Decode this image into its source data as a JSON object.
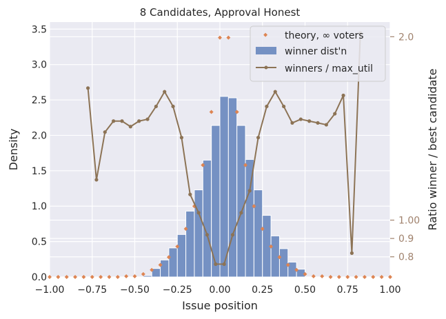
{
  "chart_data": {
    "type": "bar",
    "title": "8 Candidates, Approval Honest",
    "xlabel": "Issue position",
    "ylabel": "Density",
    "ylabel_right": "Ratio winner / best candidate",
    "xlim": [
      -1.0,
      1.0
    ],
    "ylim": [
      0,
      3.6
    ],
    "y2lim": [
      0.69,
      2.08
    ],
    "xticks": [
      "−1.00",
      "−0.75",
      "−0.50",
      "−0.25",
      "0.00",
      "0.25",
      "0.50",
      "0.75",
      "1.00"
    ],
    "yticks": [
      "0.0",
      "0.5",
      "1.0",
      "1.5",
      "2.0",
      "2.5",
      "3.0",
      "3.5"
    ],
    "y2ticks": [
      "0.8",
      "0.9",
      "1.00",
      "2.0"
    ],
    "grid": true,
    "legend_position": "top-right",
    "colors": {
      "background": "#eaeaf2",
      "bars": "#7591c3",
      "theory": "#dd8452",
      "ratio": "#8c7355",
      "right_axis_text": "#a0826d"
    },
    "series": [
      {
        "name": "winner dist'n",
        "kind": "bar",
        "bin_width": 0.05,
        "x": [
          -0.425,
          -0.375,
          -0.325,
          -0.275,
          -0.225,
          -0.175,
          -0.125,
          -0.075,
          -0.025,
          0.025,
          0.075,
          0.125,
          0.175,
          0.225,
          0.275,
          0.325,
          0.375,
          0.425,
          0.475
        ],
        "values": [
          0.02,
          0.12,
          0.24,
          0.41,
          0.6,
          0.93,
          1.23,
          1.65,
          2.14,
          2.55,
          2.53,
          2.14,
          1.66,
          1.23,
          0.87,
          0.58,
          0.4,
          0.21,
          0.11
        ]
      },
      {
        "name": "theory, ∞ voters",
        "kind": "scatter",
        "x": [
          -1.0,
          -0.95,
          -0.9,
          -0.85,
          -0.8,
          -0.75,
          -0.7,
          -0.65,
          -0.6,
          -0.55,
          -0.5,
          -0.45,
          -0.4,
          -0.35,
          -0.3,
          -0.25,
          -0.2,
          -0.15,
          -0.1,
          -0.05,
          0.0,
          0.05,
          0.1,
          0.15,
          0.2,
          0.25,
          0.3,
          0.35,
          0.4,
          0.45,
          0.5,
          0.55,
          0.6,
          0.65,
          0.7,
          0.75,
          0.8,
          0.85,
          0.9,
          0.95,
          1.0
        ],
        "values": [
          0,
          0,
          0,
          0,
          0,
          0,
          0,
          0,
          0,
          0.01,
          0.01,
          0.04,
          0.1,
          0.17,
          0.28,
          0.43,
          0.68,
          1.0,
          1.58,
          2.33,
          3.38,
          3.38,
          2.33,
          1.58,
          1.0,
          0.68,
          0.43,
          0.28,
          0.17,
          0.1,
          0.04,
          0.01,
          0.01,
          0,
          0,
          0,
          0,
          0,
          0,
          0,
          0
        ]
      },
      {
        "name": "winners / max_util",
        "kind": "line",
        "axis": "right",
        "x": [
          -0.775,
          -0.725,
          -0.675,
          -0.625,
          -0.575,
          -0.525,
          -0.475,
          -0.425,
          -0.375,
          -0.325,
          -0.275,
          -0.225,
          -0.175,
          -0.125,
          -0.075,
          -0.025,
          0.025,
          0.075,
          0.125,
          0.175,
          0.225,
          0.275,
          0.325,
          0.375,
          0.425,
          0.475,
          0.525,
          0.575,
          0.625,
          0.675,
          0.725,
          0.775,
          0.825
        ],
        "values": [
          1.72,
          1.22,
          1.48,
          1.54,
          1.54,
          1.51,
          1.54,
          1.55,
          1.62,
          1.7,
          1.62,
          1.45,
          1.14,
          1.04,
          0.92,
          0.76,
          0.76,
          0.92,
          1.04,
          1.16,
          1.45,
          1.62,
          1.7,
          1.62,
          1.53,
          1.55,
          1.54,
          1.53,
          1.52,
          1.58,
          1.68,
          0.82,
          2.02
        ]
      }
    ]
  }
}
